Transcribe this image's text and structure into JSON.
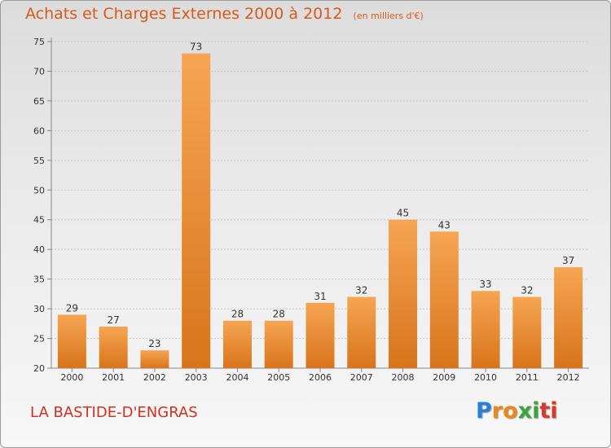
{
  "title": "Achats et Charges Externes 2000 à 2012",
  "subtitle": "(en milliers d'€)",
  "commune": "LA BASTIDE-D'ENGRAS",
  "logo": {
    "text": "Proxiti",
    "letters": [
      {
        "ch": "P",
        "color": "#2a7fd6"
      },
      {
        "ch": "r",
        "color": "#e8891a"
      },
      {
        "ch": "o",
        "color": "#e8891a"
      },
      {
        "ch": "x",
        "color": "#3aa63a"
      },
      {
        "ch": "i",
        "color": "#3aa63a"
      },
      {
        "ch": "t",
        "color": "#d63a2a"
      },
      {
        "ch": "i",
        "color": "#d63a2a"
      }
    ]
  },
  "colors": {
    "bar_top": "#f6a552",
    "bar_bottom": "#d8741c",
    "title": "#d85a1a",
    "axis": "#888888"
  },
  "chart_data": {
    "type": "bar",
    "categories": [
      "2000",
      "2001",
      "2002",
      "2003",
      "2004",
      "2005",
      "2006",
      "2007",
      "2008",
      "2009",
      "2010",
      "2011",
      "2012"
    ],
    "values": [
      29,
      27,
      23,
      73,
      28,
      28,
      31,
      32,
      45,
      43,
      33,
      32,
      37
    ],
    "data_labels": [
      "29",
      "27",
      "23",
      "73",
      "28",
      "28",
      "31",
      "32",
      "45",
      "43",
      "33",
      "32",
      "37"
    ],
    "ylim": [
      20,
      75
    ],
    "yticks": [
      "20",
      "25",
      "30",
      "35",
      "40",
      "45",
      "50",
      "55",
      "60",
      "65",
      "70",
      "75"
    ],
    "grid": true,
    "xlabel": "",
    "ylabel": ""
  }
}
